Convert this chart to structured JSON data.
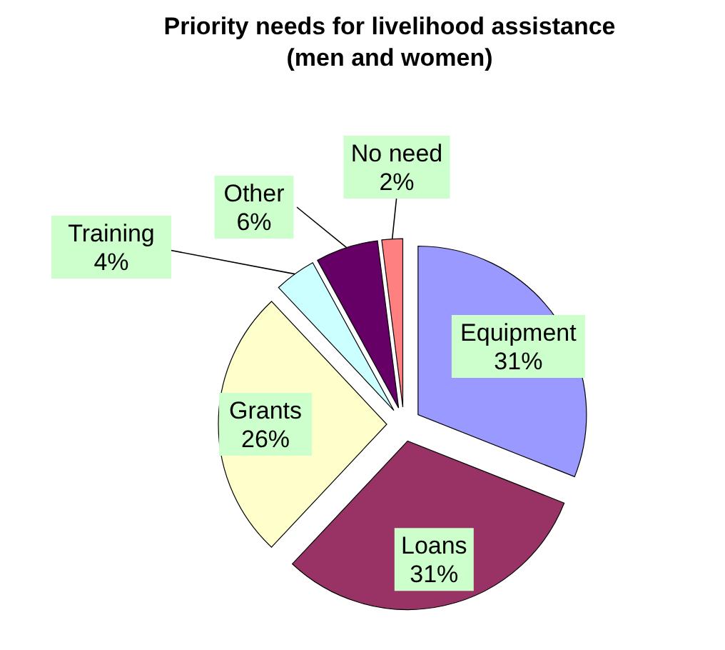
{
  "chart_data": {
    "type": "pie",
    "title": "Priority needs for livelihood assistance\n(men and women)",
    "categories": [
      "Equipment",
      "Loans",
      "Grants",
      "Training",
      "Other",
      "No need"
    ],
    "values": [
      31,
      31,
      26,
      4,
      6,
      2
    ],
    "value_labels": [
      "31%",
      "31%",
      "26%",
      "4%",
      "6%",
      "2%"
    ],
    "colors": [
      "#9999ff",
      "#993366",
      "#ffffcc",
      "#ccffff",
      "#660066",
      "#ff8080"
    ],
    "legend": false
  }
}
